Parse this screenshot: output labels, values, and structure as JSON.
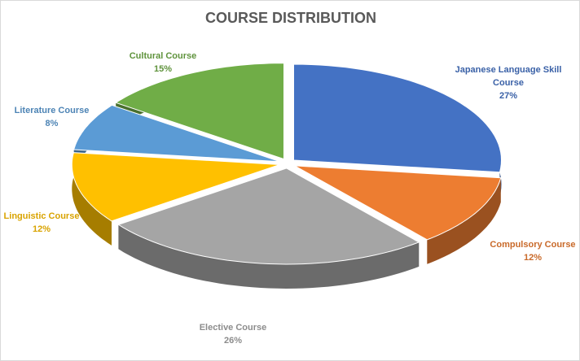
{
  "chart_data": {
    "type": "pie",
    "title": "COURSE DISTRIBUTION",
    "categories": [
      "Japanese Language Skill Course",
      "Compulsory Course",
      "Elective Course",
      "Linguistic Course",
      "Literature Course",
      "Cultural Course"
    ],
    "values": [
      27,
      12,
      26,
      12,
      8,
      15
    ],
    "value_labels": [
      "27%",
      "12%",
      "26%",
      "12%",
      "8%",
      "15%"
    ],
    "colors": [
      "#4472c4",
      "#ed7d31",
      "#a5a5a5",
      "#ffc000",
      "#5b9bd5",
      "#70ad47"
    ]
  }
}
